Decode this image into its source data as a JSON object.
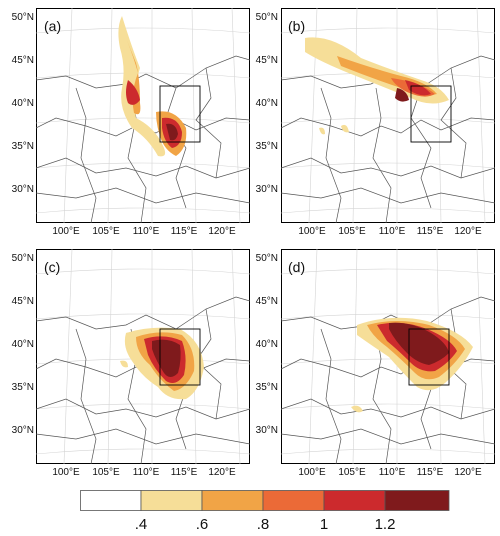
{
  "panels": [
    {
      "label": "(a)",
      "lat_labels": [
        "50°N",
        "45°N",
        "40°N",
        "35°N",
        "30°N"
      ],
      "lon_labels": [
        "100°E",
        "105°E",
        "110°E",
        "115°E",
        "120°E"
      ]
    },
    {
      "label": "(b)",
      "lat_labels": [
        "50°N",
        "45°N",
        "40°N",
        "35°N",
        "30°N"
      ],
      "lon_labels": [
        "100°E",
        "105°E",
        "110°E",
        "115°E",
        "120°E"
      ]
    },
    {
      "label": "(c)",
      "lat_labels": [
        "50°N",
        "45°N",
        "40°N",
        "35°N",
        "30°N"
      ],
      "lon_labels": [
        "100°E",
        "105°E",
        "110°E",
        "115°E",
        "120°E"
      ]
    },
    {
      "label": "(d)",
      "lat_labels": [
        "50°N",
        "45°N",
        "40°N",
        "35°N",
        "30°N"
      ],
      "lon_labels": [
        "100°E",
        "105°E",
        "110°E",
        "115°E",
        "120°E"
      ]
    }
  ],
  "colorbar": {
    "labels": [
      ".4",
      ".6",
      ".8",
      "1",
      "1.2"
    ],
    "colors": [
      "#ffffff",
      "#f6de98",
      "#f1a446",
      "#eb6a37",
      "#cc2a2d",
      "#7f1a1c"
    ]
  },
  "styles": {
    "border_color": "#555555",
    "grid_color": "#d4d4d4"
  }
}
